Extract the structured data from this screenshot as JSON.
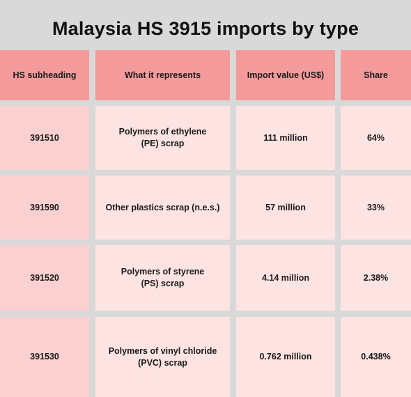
{
  "title": "Malaysia HS 3915 imports by type",
  "table": {
    "headers": [
      "HS subheading",
      "What it represents",
      "Import value (US$)",
      "Share"
    ],
    "rows": [
      [
        "391510",
        "Polymers of ethylene (PE) scrap",
        "111 million",
        "64%"
      ],
      [
        "391590",
        "Other plastics scrap (n.e.s.)",
        "57 million",
        "33%"
      ],
      [
        "391520",
        "Polymers of styrene (PS) scrap",
        "4.14 million",
        "2.38%"
      ],
      [
        "391530",
        "Polymers of vinyl chloride (PVC) scrap",
        "0.762 million",
        "0.438%"
      ]
    ]
  },
  "colors": {
    "background": "#d9d9d9",
    "header": "#f59a9a",
    "first_column": "#fbd0d0",
    "body": "#fde3e1"
  }
}
